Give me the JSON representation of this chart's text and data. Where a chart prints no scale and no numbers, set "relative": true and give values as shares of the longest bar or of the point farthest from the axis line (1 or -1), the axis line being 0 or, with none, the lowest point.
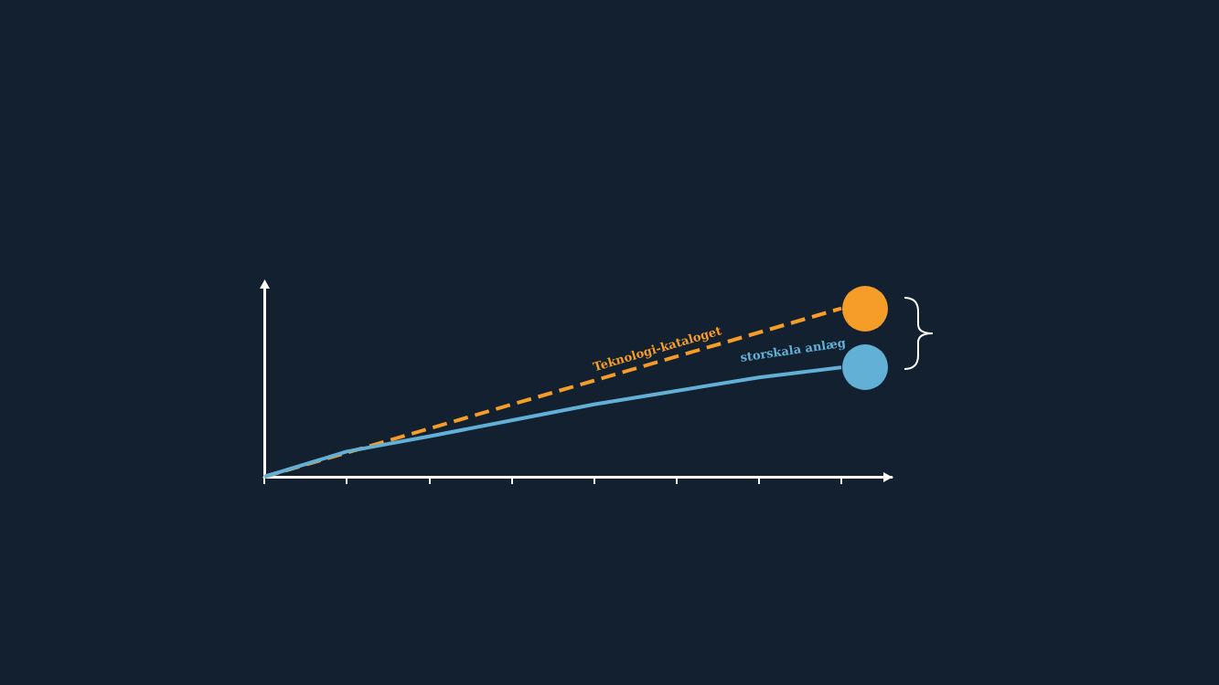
{
  "chart_data": {
    "type": "line",
    "relative": true,
    "categories": [
      null,
      null,
      null,
      null,
      null,
      null,
      null,
      null
    ],
    "series": [
      {
        "name": "Teknologi-kataloget",
        "color": "#f59d28",
        "line_style": "dashed",
        "values": [
          0,
          0.143,
          0.286,
          0.429,
          0.571,
          0.714,
          0.857,
          1
        ]
      },
      {
        "name": "storskala anlæg",
        "color": "#63b0d6",
        "line_style": "solid",
        "values": [
          0,
          0.15,
          0.24,
          0.335,
          0.43,
          0.51,
          0.59,
          0.65
        ]
      }
    ],
    "grid": false,
    "legend": false
  }
}
